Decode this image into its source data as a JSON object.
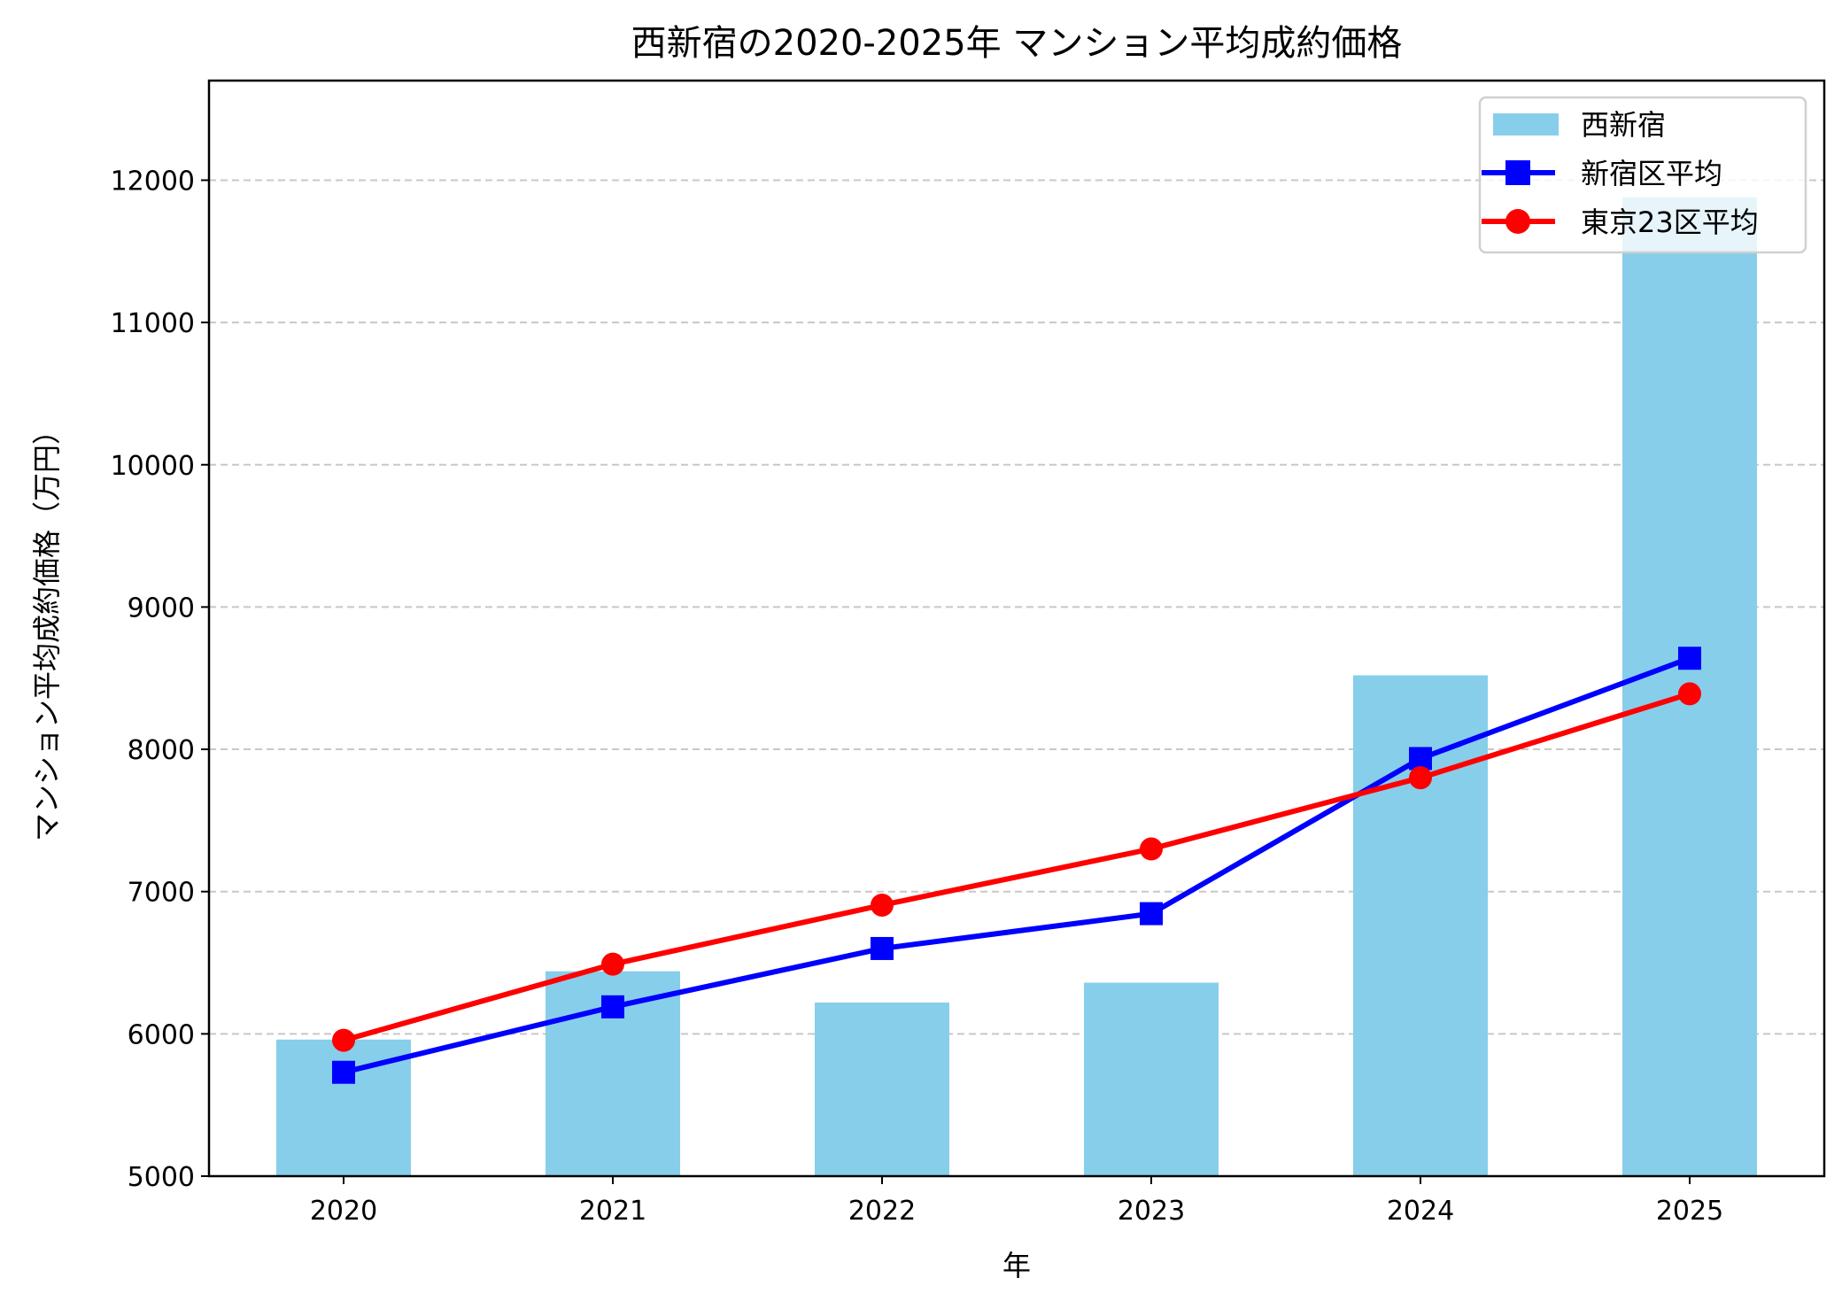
{
  "chart_data": {
    "type": "bar+line",
    "title": "西新宿の2020-2025年 マンション平均成約価格",
    "xlabel": "年",
    "ylabel": "マンション平均成約価格（万円）",
    "categories": [
      "2020",
      "2021",
      "2022",
      "2023",
      "2024",
      "2025"
    ],
    "ylim": [
      5000,
      12700
    ],
    "yticks": [
      5000,
      6000,
      7000,
      8000,
      9000,
      10000,
      11000,
      12000
    ],
    "grid": "y-dashed",
    "legend_position": "top-right",
    "series": [
      {
        "name": "西新宿",
        "kind": "bar",
        "color": "#87ceeb",
        "values": [
          5960,
          6440,
          6220,
          6360,
          8520,
          11880
        ]
      },
      {
        "name": "新宿区平均",
        "kind": "line",
        "marker": "square",
        "color": "#0000ff",
        "values": [
          5730,
          6190,
          6600,
          6845,
          7935,
          8640
        ]
      },
      {
        "name": "東京23区平均",
        "kind": "line",
        "marker": "circle",
        "color": "#ff0000",
        "values": [
          5955,
          6490,
          6905,
          7300,
          7800,
          8390
        ]
      }
    ]
  }
}
